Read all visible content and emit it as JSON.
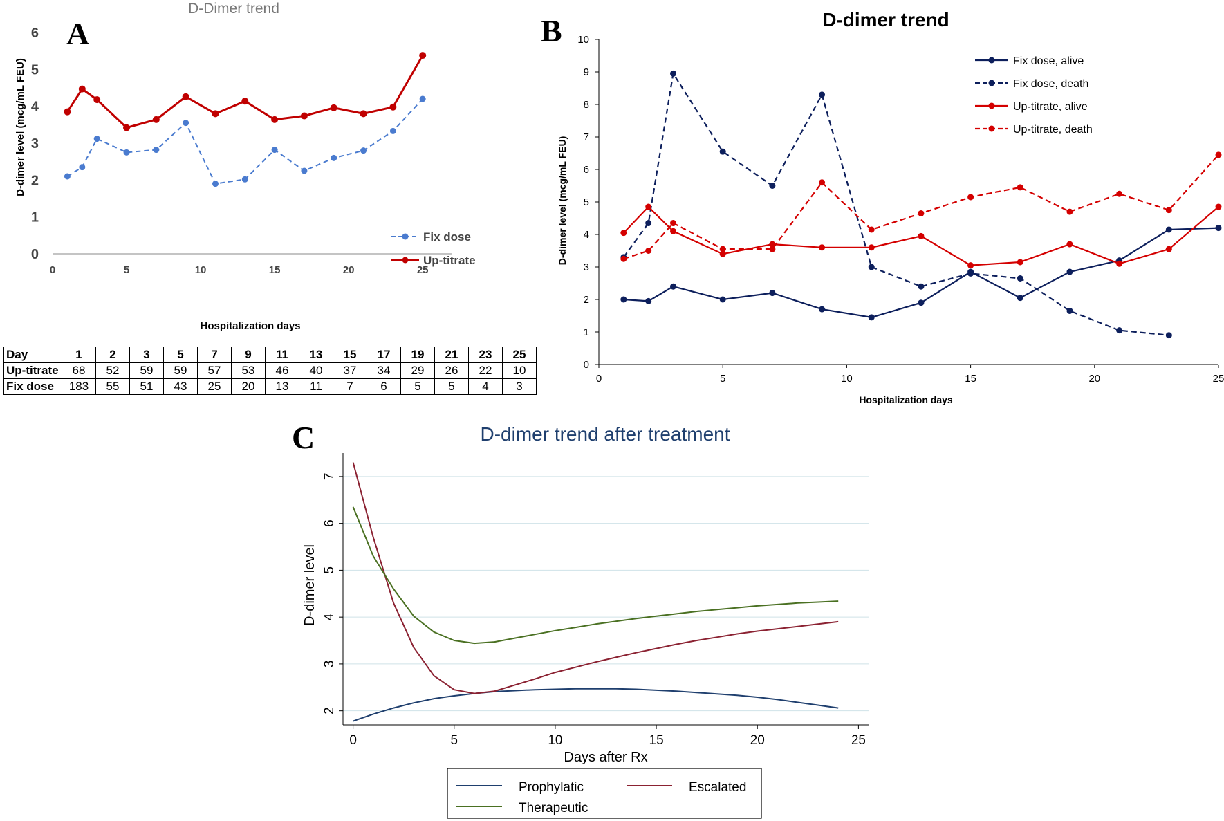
{
  "chart_data": [
    {
      "panel": "A",
      "type": "line",
      "title": "D-Dimer trend",
      "xlabel": "Hospitalization days",
      "ylabel": "D-dimer level (mcg/mL FEU)",
      "xlim": [
        0,
        27
      ],
      "ylim": [
        0,
        6
      ],
      "xticks": [
        0,
        5,
        10,
        15,
        20,
        25
      ],
      "yticks": [
        0,
        1,
        2,
        3,
        4,
        5,
        6
      ],
      "legend_position": "right",
      "series": [
        {
          "name": "Fix dose",
          "style": "dashed",
          "color": "#4a7bcf",
          "x": [
            1,
            2,
            3,
            5,
            7,
            9,
            11,
            13,
            15,
            17,
            19,
            21,
            23,
            25
          ],
          "y": [
            2.1,
            2.35,
            3.12,
            2.75,
            2.82,
            3.55,
            1.9,
            2.02,
            2.82,
            2.25,
            2.6,
            2.8,
            3.33,
            4.2
          ]
        },
        {
          "name": "Up-titrate",
          "style": "solid",
          "color": "#c00000",
          "x": [
            1,
            2,
            3,
            5,
            7,
            9,
            11,
            13,
            15,
            17,
            19,
            21,
            23,
            25
          ],
          "y": [
            3.85,
            4.47,
            4.18,
            3.42,
            3.64,
            4.26,
            3.8,
            4.14,
            3.64,
            3.74,
            3.96,
            3.8,
            3.98,
            5.38
          ]
        }
      ],
      "table": {
        "header": [
          "Day",
          "1",
          "2",
          "3",
          "5",
          "7",
          "9",
          "11",
          "13",
          "15",
          "17",
          "19",
          "21",
          "23",
          "25"
        ],
        "rows": [
          [
            "Up-titrate",
            "68",
            "52",
            "59",
            "59",
            "57",
            "53",
            "46",
            "40",
            "37",
            "34",
            "29",
            "26",
            "22",
            "10"
          ],
          [
            "Fix dose",
            "183",
            "55",
            "51",
            "43",
            "25",
            "20",
            "13",
            "11",
            "7",
            "6",
            "5",
            "5",
            "4",
            "3"
          ]
        ]
      }
    },
    {
      "panel": "B",
      "type": "line",
      "title": "D-dimer trend",
      "xlabel": "Hospitalization days",
      "ylabel": "D-dimer level (mcg/mL FEU)",
      "xlim": [
        0,
        25
      ],
      "ylim": [
        0,
        10
      ],
      "xticks": [
        0,
        5,
        10,
        15,
        20,
        25
      ],
      "yticks": [
        0,
        1,
        2,
        3,
        4,
        5,
        6,
        7,
        8,
        9,
        10
      ],
      "legend_position": "top-right",
      "series": [
        {
          "name": "Fix dose, alive",
          "style": "solid",
          "color": "#0d1f5c",
          "x": [
            1,
            2,
            3,
            5,
            7,
            9,
            11,
            13,
            15,
            17,
            19,
            21,
            23,
            25
          ],
          "y": [
            2.0,
            1.95,
            2.4,
            2.0,
            2.2,
            1.7,
            1.45,
            1.9,
            2.85,
            2.05,
            2.85,
            3.2,
            4.15,
            4.2
          ]
        },
        {
          "name": "Fix dose, death",
          "style": "dashed",
          "color": "#0d1f5c",
          "x": [
            1,
            2,
            3,
            5,
            7,
            9,
            11,
            13,
            15,
            17,
            19,
            21,
            23
          ],
          "y": [
            3.3,
            4.35,
            8.95,
            6.55,
            5.5,
            8.3,
            3.0,
            2.4,
            2.8,
            2.65,
            1.65,
            1.05,
            0.9
          ]
        },
        {
          "name": "Up-titrate, alive",
          "style": "solid",
          "color": "#d40000",
          "x": [
            1,
            2,
            3,
            5,
            7,
            9,
            11,
            13,
            15,
            17,
            19,
            21,
            23,
            25
          ],
          "y": [
            4.05,
            4.85,
            4.1,
            3.4,
            3.7,
            3.6,
            3.6,
            3.95,
            3.05,
            3.15,
            3.7,
            3.1,
            3.55,
            4.85
          ]
        },
        {
          "name": "Up-titrate, death",
          "style": "dashed",
          "color": "#d40000",
          "x": [
            1,
            2,
            3,
            5,
            7,
            9,
            11,
            13,
            15,
            17,
            19,
            21,
            23,
            25
          ],
          "y": [
            3.25,
            3.5,
            4.35,
            3.55,
            3.55,
            5.6,
            4.15,
            4.65,
            5.15,
            5.45,
            4.7,
            5.25,
            4.75,
            6.45
          ]
        }
      ]
    },
    {
      "panel": "C",
      "type": "line",
      "title": "D-dimer trend after treatment",
      "xlabel": "Days after Rx",
      "ylabel": "D-dimer level",
      "xlim": [
        -0.5,
        25.5
      ],
      "ylim": [
        1.7,
        7.5
      ],
      "xticks": [
        0,
        5,
        10,
        15,
        20,
        25
      ],
      "yticks": [
        2,
        3,
        4,
        5,
        6,
        7
      ],
      "grid": true,
      "legend_position": "bottom",
      "series": [
        {
          "name": "Prophylatic",
          "color": "#1f3f6e",
          "x": [
            0,
            1,
            2,
            3,
            4,
            5,
            6,
            7,
            8,
            9,
            10,
            11,
            12,
            13,
            14,
            15,
            16,
            17,
            18,
            19,
            20,
            21,
            22,
            23,
            24
          ],
          "y": [
            1.78,
            1.93,
            2.06,
            2.17,
            2.26,
            2.32,
            2.37,
            2.41,
            2.43,
            2.45,
            2.46,
            2.47,
            2.47,
            2.47,
            2.46,
            2.44,
            2.42,
            2.39,
            2.36,
            2.33,
            2.29,
            2.24,
            2.18,
            2.12,
            2.06
          ]
        },
        {
          "name": "Escalated",
          "color": "#8b2232",
          "x": [
            0,
            1,
            2,
            3,
            4,
            5,
            6,
            7,
            8,
            9,
            10,
            11,
            12,
            13,
            14,
            15,
            16,
            17,
            18,
            19,
            20,
            21,
            22,
            23,
            24
          ],
          "y": [
            7.3,
            5.7,
            4.3,
            3.35,
            2.75,
            2.45,
            2.37,
            2.42,
            2.55,
            2.68,
            2.82,
            2.93,
            3.04,
            3.14,
            3.24,
            3.33,
            3.42,
            3.5,
            3.57,
            3.64,
            3.7,
            3.75,
            3.8,
            3.85,
            3.9
          ]
        },
        {
          "name": "Therapeutic",
          "color": "#4a7022",
          "x": [
            0,
            1,
            2,
            3,
            4,
            5,
            6,
            7,
            8,
            9,
            10,
            11,
            12,
            13,
            14,
            15,
            16,
            17,
            18,
            19,
            20,
            21,
            22,
            23,
            24
          ],
          "y": [
            6.35,
            5.3,
            4.6,
            4.02,
            3.68,
            3.5,
            3.44,
            3.47,
            3.55,
            3.63,
            3.71,
            3.78,
            3.85,
            3.91,
            3.97,
            4.02,
            4.07,
            4.12,
            4.16,
            4.2,
            4.24,
            4.27,
            4.3,
            4.32,
            4.34
          ]
        }
      ]
    }
  ],
  "panel_labels": {
    "a": "A",
    "b": "B",
    "c": "C"
  }
}
